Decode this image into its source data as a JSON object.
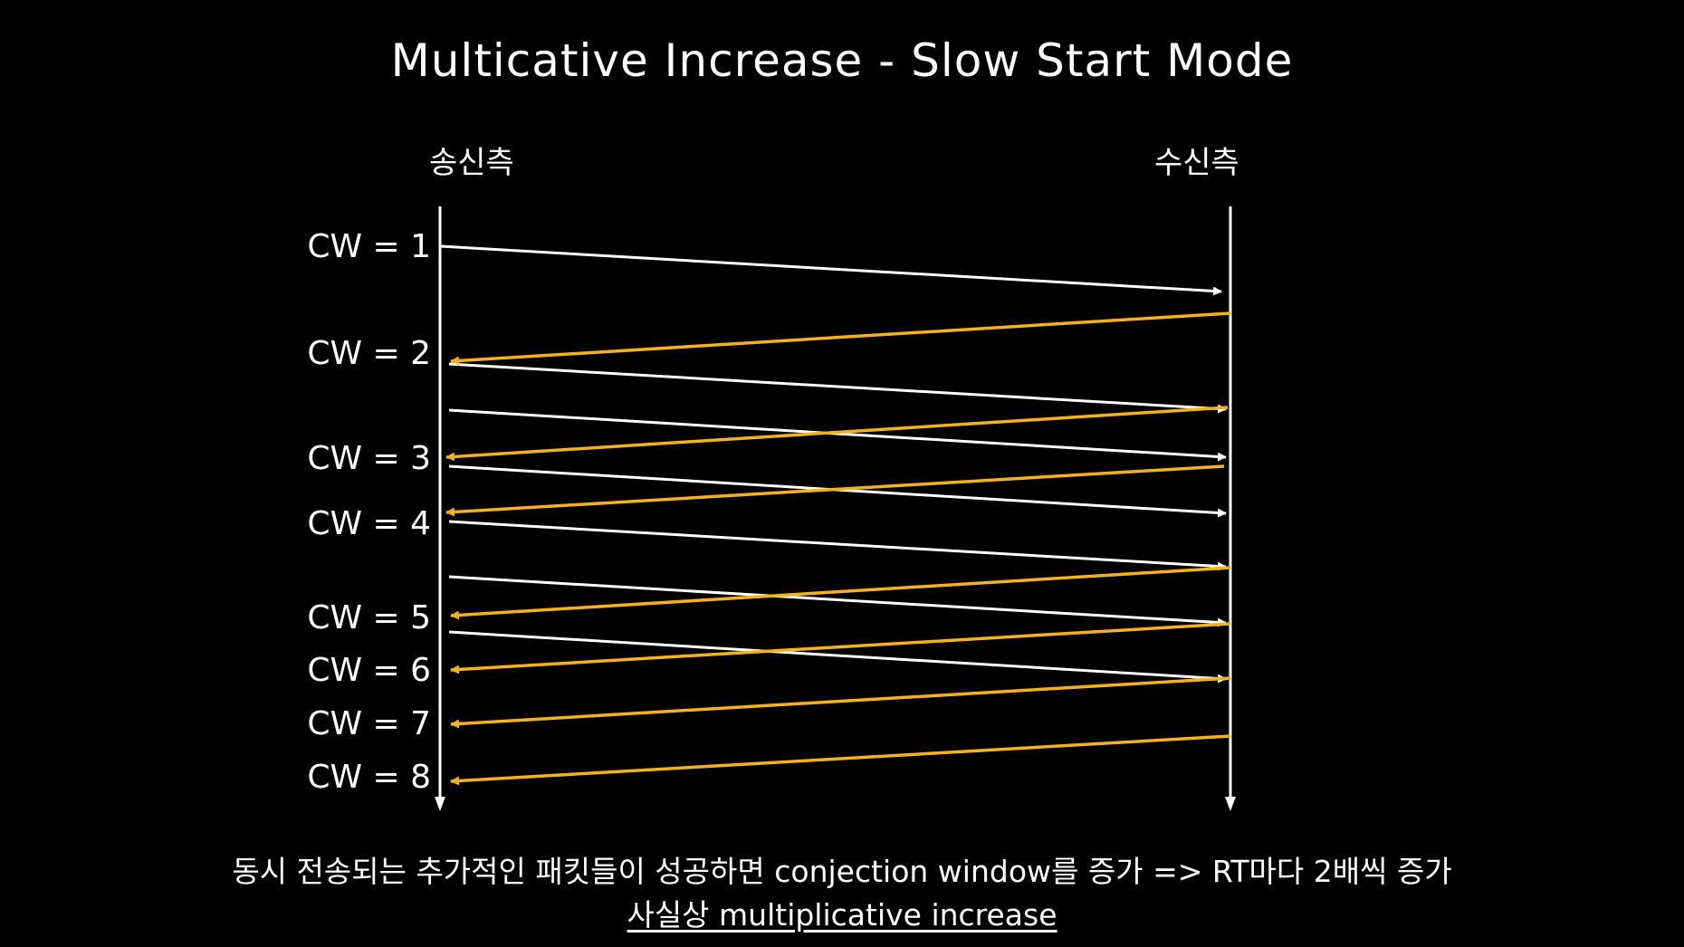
{
  "title": "Multicative Increase - Slow Start Mode",
  "sender_label": "송신측",
  "receiver_label": "수신측",
  "cw_labels": [
    "CW = 1",
    "CW = 2",
    "CW = 3",
    "CW = 4",
    "CW = 5",
    "CW = 6",
    "CW = 7",
    "CW = 8"
  ],
  "caption_line_1": "동시 전송되는 추가적인 패킷들이 성공하면 conjection window를 증가 => RT마다 2배씩 증가",
  "caption_line_2": "사실상 multiplicative increase",
  "colors": {
    "background": "#000000",
    "data_arrow": "#ffffff",
    "ack_arrow": "#f5b21b"
  }
}
